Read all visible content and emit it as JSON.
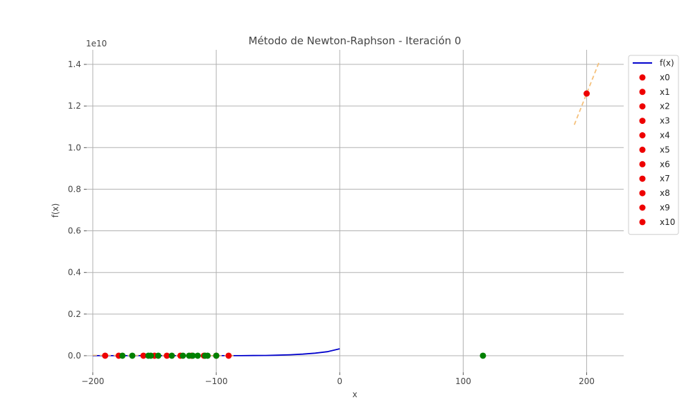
{
  "chart_data": {
    "type": "line",
    "title": "Método de Newton-Raphson - Iteración 0",
    "xlabel": "x",
    "ylabel": "f(x)",
    "y_offset_label": "1e10",
    "xlim": [
      -205,
      230
    ],
    "ylim": [
      -0.08,
      1.47
    ],
    "y_scale": 10000000000.0,
    "x_ticks": [
      -200,
      -100,
      0,
      100,
      200
    ],
    "x_tick_labels": [
      "−200",
      "−100",
      "0",
      "100",
      "200"
    ],
    "y_ticks": [
      0.0,
      0.2,
      0.4,
      0.6,
      0.8,
      1.0,
      1.2,
      1.4
    ],
    "y_tick_labels": [
      "0.0",
      "0.2",
      "0.4",
      "0.6",
      "0.8",
      "1.0",
      "1.2",
      "1.4"
    ],
    "grid": true,
    "legend_position": "outside-right",
    "colors": {
      "curve": "#0000cc",
      "iterate_points": "#ee0000",
      "root_points": "#008000",
      "tangent": "#f5c07a",
      "grid": "#b0b0b0"
    },
    "series": [
      {
        "name": "f(x)",
        "kind": "line",
        "x": [
          -200,
          -180,
          -160,
          -140,
          -120,
          -100,
          -90,
          -80,
          -70,
          -60,
          -50,
          -40,
          -30,
          -20,
          -10,
          0
        ],
        "y": [
          0.0,
          0.0,
          0.0,
          0.0,
          0.0,
          0.0,
          0.0,
          0.0,
          0.0007,
          0.0013,
          0.0025,
          0.0045,
          0.0075,
          0.012,
          0.019,
          0.033
        ]
      },
      {
        "name": "x0",
        "kind": "point",
        "x": 200,
        "y": 1.26
      },
      {
        "name": "x1",
        "kind": "point",
        "x": -190,
        "y": 0.0
      },
      {
        "name": "x2",
        "kind": "point",
        "x": -179,
        "y": 0.0
      },
      {
        "name": "x3",
        "kind": "point",
        "x": -159,
        "y": 0.0
      },
      {
        "name": "x4",
        "kind": "point",
        "x": -150,
        "y": 0.0
      },
      {
        "name": "x5",
        "kind": "point",
        "x": -140,
        "y": 0.0
      },
      {
        "name": "x6",
        "kind": "point",
        "x": -129,
        "y": 0.0
      },
      {
        "name": "x7",
        "kind": "point",
        "x": -120,
        "y": 0.0
      },
      {
        "name": "x8",
        "kind": "point",
        "x": -110,
        "y": 0.0
      },
      {
        "name": "x9",
        "kind": "point",
        "x": -100,
        "y": 0.0
      },
      {
        "name": "x10",
        "kind": "point",
        "x": -90,
        "y": 0.0
      }
    ],
    "roots": [
      -176,
      -168,
      -155,
      -153,
      -147,
      -136,
      -127,
      -122,
      -119,
      -115,
      -109,
      -107,
      -100,
      116
    ],
    "tangent": {
      "x": [
        190,
        210
      ],
      "y": [
        1.11,
        1.41
      ]
    },
    "legend": [
      "f(x)",
      "x0",
      "x1",
      "x2",
      "x3",
      "x4",
      "x5",
      "x6",
      "x7",
      "x8",
      "x9",
      "x10"
    ]
  }
}
